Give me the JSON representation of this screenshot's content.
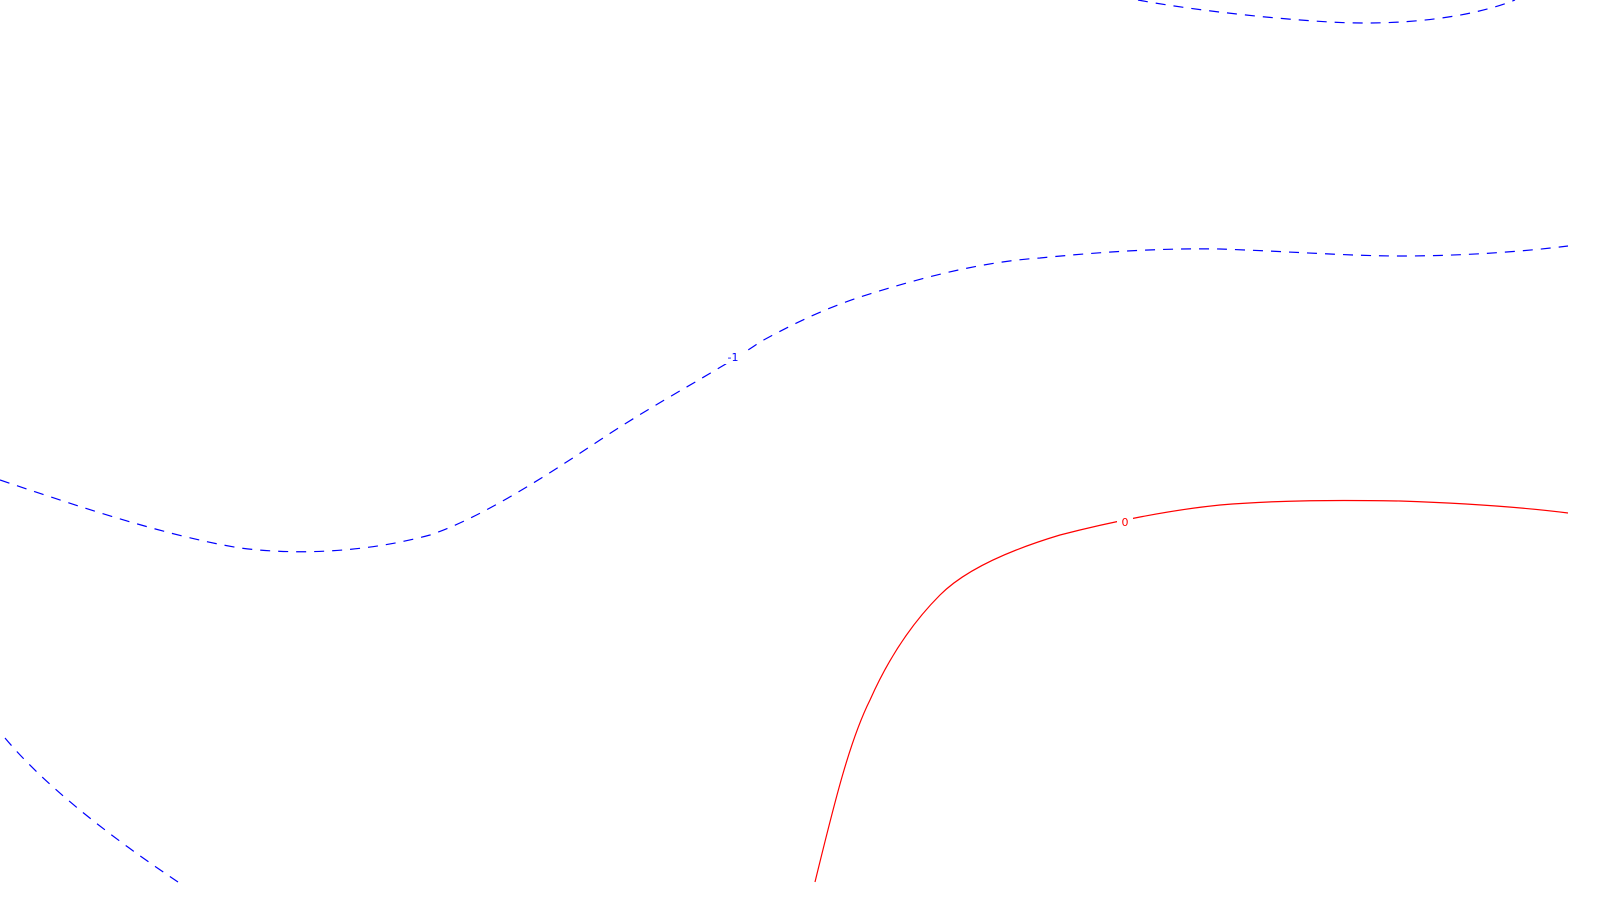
{
  "map": {
    "background": "#ffffff",
    "contours": [
      {
        "id": "contour-neg1-top",
        "level": "-1",
        "style": "dashed",
        "color": "#0000ff"
      },
      {
        "id": "contour-neg1-middle",
        "level": "-1",
        "style": "dashed",
        "color": "#0000ff",
        "label": "-1"
      },
      {
        "id": "contour-neg1-bottom-left",
        "level": "-1",
        "style": "dashed",
        "color": "#0000ff"
      },
      {
        "id": "contour-0",
        "level": "0",
        "style": "solid",
        "color": "#ff0000",
        "label": "0"
      }
    ]
  }
}
